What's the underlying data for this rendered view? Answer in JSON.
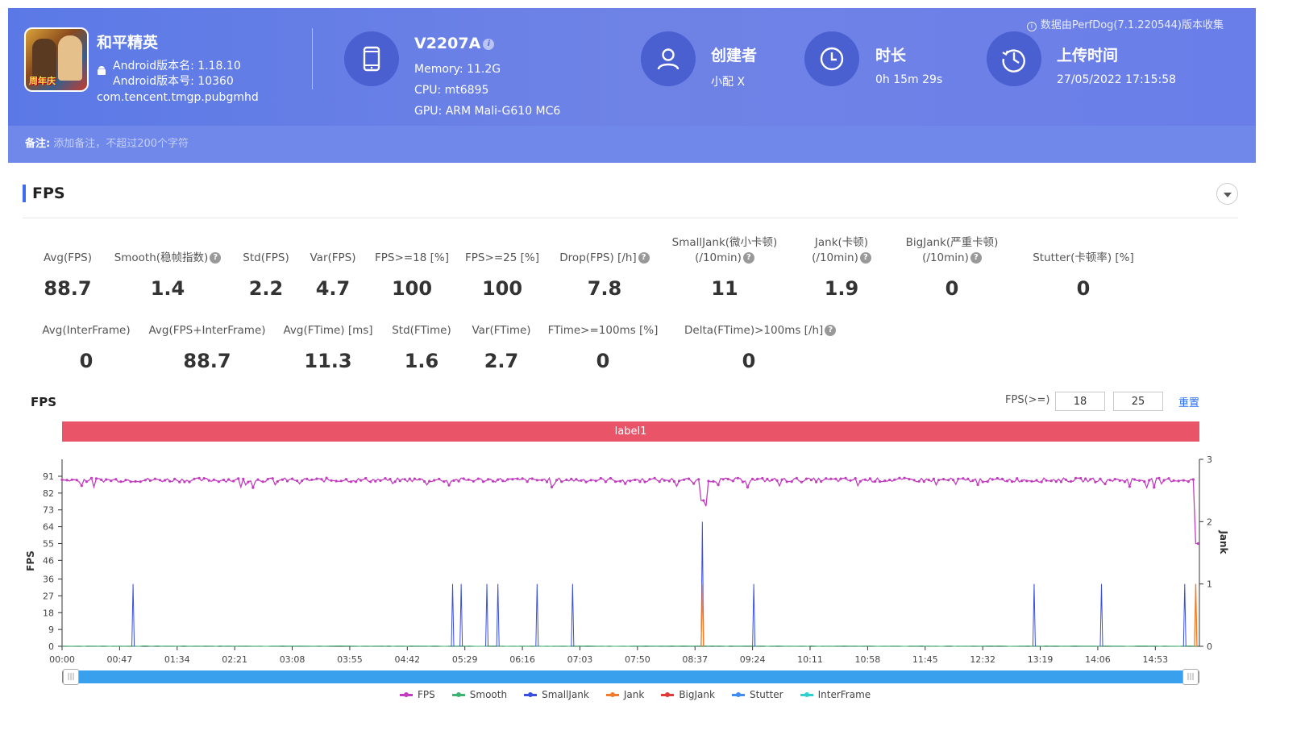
{
  "header": {
    "collect_note": "数据由PerfDog(7.1.220544)版本收集",
    "app": {
      "name": "和平精英",
      "version_name": "Android版本名: 1.18.10",
      "version_code": "Android版本号: 10360",
      "package": "com.tencent.tmgp.pubgmhd",
      "icon_text": "周年庆"
    },
    "device": {
      "model": "V2207A",
      "memory": "Memory: 11.2G",
      "cpu": "CPU: mt6895",
      "gpu": "GPU: ARM Mali-G610 MC6"
    },
    "creator": {
      "title": "创建者",
      "value": "小配 X"
    },
    "duration": {
      "title": "时长",
      "value": "0h 15m 29s"
    },
    "upload": {
      "title": "上传时间",
      "value": "27/05/2022 17:15:58"
    },
    "note": {
      "label": "备注:",
      "placeholder": "添加备注，不超过200个字符"
    }
  },
  "section": {
    "title": "FPS"
  },
  "stats_row1": [
    {
      "label": "Avg(FPS)",
      "value": "88.7",
      "help": false
    },
    {
      "label": "Smooth(稳帧指数)",
      "value": "1.4",
      "help": true
    },
    {
      "label": "Std(FPS)",
      "value": "2.2",
      "help": false
    },
    {
      "label": "Var(FPS)",
      "value": "4.7",
      "help": false
    },
    {
      "label": "FPS>=18 [%]",
      "value": "100",
      "help": false
    },
    {
      "label": "FPS>=25 [%]",
      "value": "100",
      "help": false
    },
    {
      "label": "Drop(FPS) [/h]",
      "value": "7.8",
      "help": true
    },
    {
      "label": "SmallJank(微小卡顿)",
      "label2": "(/10min)",
      "value": "11",
      "help": true
    },
    {
      "label": "Jank(卡顿)",
      "label2": "(/10min)",
      "value": "1.9",
      "help": true
    },
    {
      "label": "BigJank(严重卡顿)",
      "label2": "(/10min)",
      "value": "0",
      "help": true
    },
    {
      "label": "Stutter(卡顿率) [%]",
      "value": "0",
      "help": false
    }
  ],
  "stats_row2": [
    {
      "label": "Avg(InterFrame)",
      "value": "0",
      "help": false
    },
    {
      "label": "Avg(FPS+InterFrame)",
      "value": "88.7",
      "help": false
    },
    {
      "label": "Avg(FTime) [ms]",
      "value": "11.3",
      "help": false
    },
    {
      "label": "Std(FTime)",
      "value": "1.6",
      "help": false
    },
    {
      "label": "Var(FTime)",
      "value": "2.7",
      "help": false
    },
    {
      "label": "FTime>=100ms [%]",
      "value": "0",
      "help": false
    },
    {
      "label": "Delta(FTime)>100ms [/h]",
      "value": "0",
      "help": true
    }
  ],
  "chart_header": {
    "title": "FPS",
    "threshold_label": "FPS(>=)",
    "threshold1": "18",
    "threshold2": "25",
    "reset": "重置",
    "label_bar": "label1"
  },
  "chart_data": {
    "type": "line",
    "ylabel": "FPS",
    "ylabel_right": "Jank",
    "y_ticks": [
      0,
      9,
      18,
      27,
      36,
      46,
      55,
      64,
      73,
      82,
      91
    ],
    "y_right_ticks": [
      0,
      1,
      2,
      3
    ],
    "ylim": [
      0,
      91
    ],
    "ylim_right": [
      0,
      3
    ],
    "x_ticks": [
      "00:00",
      "00:47",
      "01:34",
      "02:21",
      "03:08",
      "03:55",
      "04:42",
      "05:29",
      "06:16",
      "07:03",
      "07:50",
      "08:37",
      "09:24",
      "10:11",
      "10:58",
      "11:45",
      "12:32",
      "13:19",
      "14:06",
      "14:53"
    ],
    "duration_seconds": 929,
    "fps_baseline": 89,
    "fps_dips": [
      {
        "t": 523,
        "fps": 78
      },
      {
        "t": 524,
        "fps": 72
      },
      {
        "t": 525,
        "fps": 75
      },
      {
        "t": 927,
        "fps": 55
      },
      {
        "t": 928,
        "fps": 72
      }
    ],
    "smalljank_times": [
      58,
      319,
      326,
      347,
      356,
      388,
      417,
      523,
      565,
      794,
      849,
      917
    ],
    "jank_times": [
      523,
      926
    ],
    "bigjank_times": [],
    "stutter_times": [],
    "series": [
      {
        "name": "FPS",
        "color": "#c33ebf"
      },
      {
        "name": "Smooth",
        "color": "#3cb371"
      },
      {
        "name": "SmallJank",
        "color": "#3a4fe0"
      },
      {
        "name": "Jank",
        "color": "#f07b2a"
      },
      {
        "name": "BigJank",
        "color": "#e03a3a"
      },
      {
        "name": "Stutter",
        "color": "#3d8ef0"
      },
      {
        "name": "InterFrame",
        "color": "#2ed0d0"
      }
    ]
  },
  "colors": {
    "banner": "#5b79e6",
    "accent": "#3e6bf0",
    "label_bar": "#ea5468",
    "scrollbar": "#39a0ee"
  }
}
